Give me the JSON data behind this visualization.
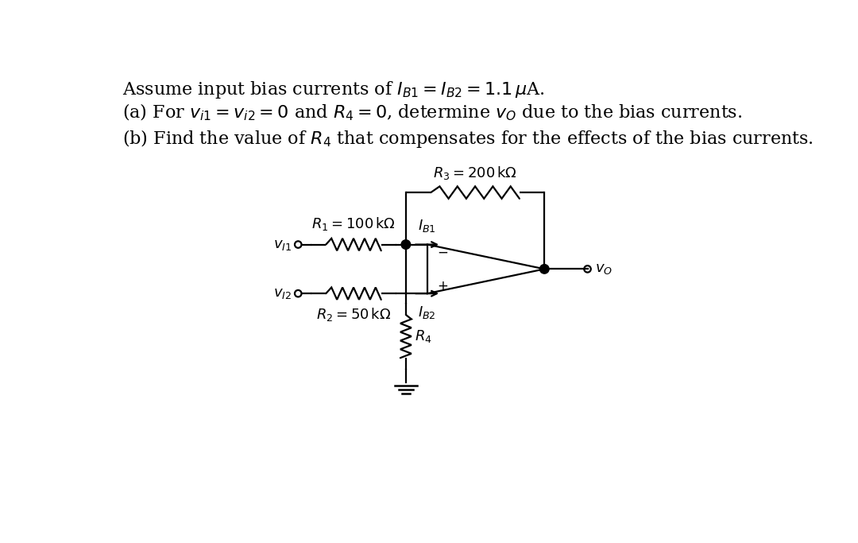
{
  "background_color": "#ffffff",
  "text_line1": "Assume input bias currents of $I_{B1} = I_{B2} = 1.1\\,\\mu$A.",
  "text_line2": "(a) For $v_{i1} = v_{i2} = 0$ and $R_4 = 0$, determine $v_O$ due to the bias currents.",
  "text_line3": "(b) Find the value of $R_4$ that compensates for the effects of the bias currents.",
  "R1_label": "$R_1 = 100\\,\\mathrm{k}\\Omega$",
  "R2_label": "$R_2 = 50\\,\\mathrm{k}\\Omega$",
  "R3_label": "$R_3 = 200\\,\\mathrm{k}\\Omega$",
  "R4_label": "$R_4$",
  "IB1_label": "$I_{B1}$",
  "IB2_label": "$I_{B2}$",
  "vi1_label": "$v_{I1}$",
  "vi2_label": "$v_{I2}$",
  "vo_label": "$v_O$",
  "font_size_text": 16,
  "font_size_labels": 13,
  "line_color": "#000000",
  "line_width": 1.6
}
